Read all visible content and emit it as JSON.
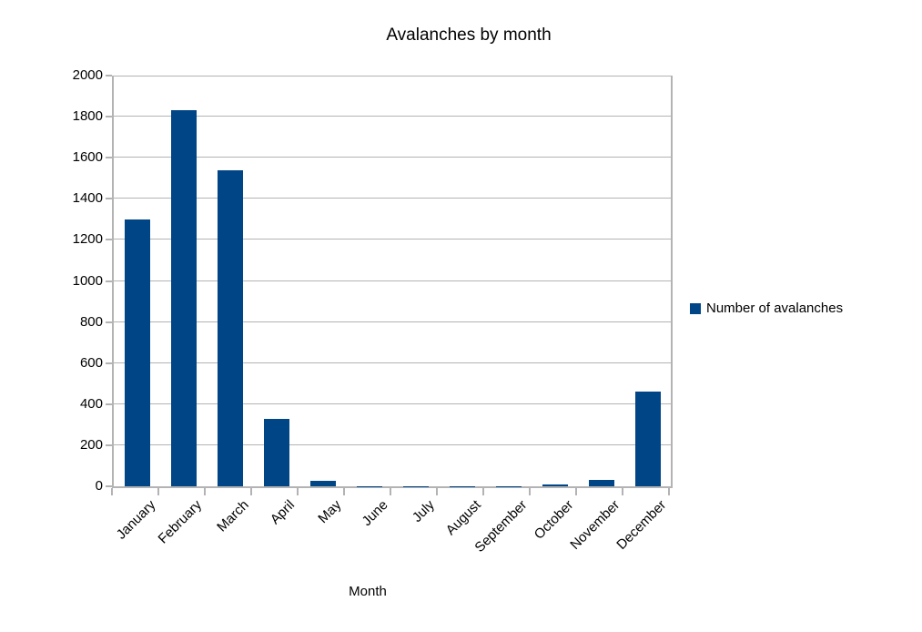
{
  "window": {
    "background_color": "#ffffff"
  },
  "chart_data": {
    "type": "bar",
    "title": "Avalanches by month",
    "xlabel": "Month",
    "ylabel": "",
    "categories": [
      "January",
      "February",
      "March",
      "April",
      "May",
      "June",
      "July",
      "August",
      "September",
      "October",
      "November",
      "December"
    ],
    "series": [
      {
        "name": "Number of avalanches",
        "color": "#004586",
        "values": [
          1300,
          1830,
          1540,
          330,
          25,
          2,
          2,
          2,
          2,
          7,
          33,
          460
        ]
      }
    ],
    "ylim": [
      0,
      2000
    ],
    "ytick_step": 200,
    "ytick_labels": [
      "0",
      "200",
      "400",
      "600",
      "800",
      "1000",
      "1200",
      "1400",
      "1600",
      "1800",
      "2000"
    ],
    "grid": true,
    "legend_position": "right",
    "gridline_color": "#b3b3b3",
    "axis_color": "#b3b3b3",
    "text_color": "#000000"
  }
}
